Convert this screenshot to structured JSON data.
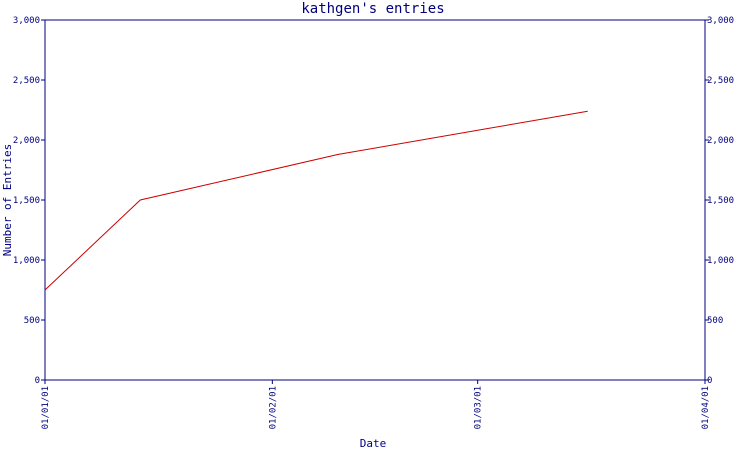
{
  "chart_data": {
    "type": "line",
    "title": "kathgen's entries",
    "xlabel": "Date",
    "ylabel": "Number of Entries",
    "x_tick_labels": [
      "01/01/01",
      "01/02/01",
      "01/03/01",
      "01/04/01"
    ],
    "y_tick_labels": [
      "0",
      "500",
      "1,000",
      "1,500",
      "2,000",
      "2,500",
      "3,000"
    ],
    "right_y_tick_labels": [
      "0",
      "500",
      "1,000",
      "1,500",
      "2,000",
      "2,500",
      "3,000"
    ],
    "ylim": [
      0,
      3000
    ],
    "xlim": [
      "2001-01-01",
      "2001-04-01"
    ],
    "grid": false,
    "legend": "none",
    "series": [
      {
        "x": [
          "2001-01-01",
          "2001-01-14",
          "2001-02-10",
          "2001-03-16"
        ],
        "y": [
          750,
          1500,
          1880,
          2240
        ]
      }
    ],
    "colors": {
      "axis": "#000080",
      "line": "#cc0000",
      "background": "#ffffff"
    }
  }
}
